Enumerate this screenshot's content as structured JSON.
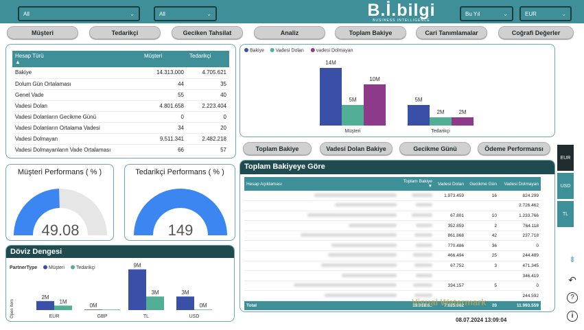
{
  "filters": [
    {
      "value": "All"
    },
    {
      "value": "All"
    },
    {
      "value": "Bu Yıl"
    },
    {
      "value": "EUR"
    }
  ],
  "logo": {
    "text": "B.İ.bilgi",
    "sub": "BUSINESS INTELLIGENCE"
  },
  "nav": [
    "Müşteri",
    "Tedarikçi",
    "Geciken Tahsilat",
    "Analiz",
    "Toplam Bakiye",
    "Cari Tanımlamalar",
    "Coğrafi Değerler"
  ],
  "summary_table": {
    "headers": [
      "Hesap Türü",
      "Müşteri",
      "Tedarikçi"
    ],
    "rows": [
      [
        "Bakiye",
        "14.313.000",
        "4.705.621"
      ],
      [
        "Dolum Gün Ortalaması",
        "44",
        "35"
      ],
      [
        "Genel Vade",
        "55",
        "40"
      ],
      [
        "Vadesi Dolan",
        "4.801.658",
        "2.223.404"
      ],
      [
        "Vadesi Dolanların Gecikme Günü",
        "0",
        "0"
      ],
      [
        "Vadesi Dolanların Ortalama Vadesi",
        "34",
        "20"
      ],
      [
        "Vadesi Dolmayan",
        "9.511.341",
        "2.482.218"
      ],
      [
        "Vadesi Dolmayanların Vade Ortalaması",
        "66",
        "57"
      ]
    ]
  },
  "gauges": [
    {
      "title": "Müşteri Performans ( % )",
      "value": "49.08",
      "fraction": 0.4908,
      "color": "#3b86f0"
    },
    {
      "title": "Tedarikçi Performans ( % )",
      "value": "149",
      "fraction": 1.0,
      "color": "#3b86f0"
    }
  ],
  "doviz": {
    "title": "Döviz Dengesi"
  },
  "balance": {
    "title": "Toplam Bakiyeye Göre"
  },
  "chart_data": [
    {
      "type": "bar",
      "legend": [
        "Bakiye",
        "Vadesi Dolan",
        "vadesi Dolmayan"
      ],
      "colors": [
        "#3a4fa6",
        "#53ae96",
        "#8e3a8b"
      ],
      "categories": [
        "Müşteri",
        "Tedarikçi"
      ],
      "series": [
        {
          "name": "Bakiye",
          "values": [
            14,
            5
          ],
          "labels": [
            "14M",
            "5M"
          ]
        },
        {
          "name": "Vadesi Dolan",
          "values": [
            5,
            2
          ],
          "labels": [
            "5M",
            "2M"
          ]
        },
        {
          "name": "vadesi Dolmayan",
          "values": [
            10,
            2
          ],
          "labels": [
            "10M",
            "2M"
          ]
        }
      ],
      "ylim": [
        0,
        16
      ]
    },
    {
      "type": "bar",
      "legend_title": "PartnerType",
      "legend": [
        "Müşteri",
        "Tedarikçi"
      ],
      "colors": [
        "#3a4fa6",
        "#53ae96"
      ],
      "ylabel": "Open Item",
      "categories": [
        "EUR",
        "GBP",
        "TL",
        "USD"
      ],
      "series": [
        {
          "name": "Müşteri",
          "values": [
            2,
            0,
            9,
            3
          ],
          "labels": [
            "2M",
            "0M",
            "9M",
            "3M"
          ]
        },
        {
          "name": "Tedarikçi",
          "values": [
            1,
            0,
            3,
            0
          ],
          "labels": [
            "1M",
            "",
            "3M",
            "0M"
          ]
        }
      ],
      "ylim": [
        0,
        10
      ]
    }
  ],
  "subnav": [
    "Toplam Bakiye",
    "Vadesi Dolan Bakiye",
    "Gecikme Günü",
    "Ödeme Performansı"
  ],
  "detail_table": {
    "headers": [
      "Hesap Açıklaması",
      "Toplam Bakiye",
      "Vadesi Dolan",
      "Gecikme Gün",
      "Vadesi Dolmayan"
    ],
    "rows": [
      [
        "",
        "",
        "1.973.459",
        "16",
        "824.299"
      ],
      [
        "",
        "",
        "",
        "",
        "2.726.462"
      ],
      [
        "",
        "",
        "67.801",
        "10",
        "1.233.766"
      ],
      [
        "",
        "",
        "352.859",
        "2",
        "764.118"
      ],
      [
        "",
        "",
        "861.868",
        "42",
        "237.718"
      ],
      [
        "",
        "",
        "770.486",
        "36",
        "0"
      ],
      [
        "",
        "",
        "466.494",
        "25",
        "244.489"
      ],
      [
        "",
        "",
        "67.752",
        "3",
        "471.345"
      ],
      [
        "",
        "",
        "",
        "",
        "346.419"
      ],
      [
        "",
        "",
        "334.157",
        "5",
        "0"
      ],
      [
        "",
        "",
        "",
        "",
        "244.592"
      ]
    ],
    "total": [
      "Total",
      "19.018.6..",
      "7.025.062",
      "20",
      "11.993.559"
    ]
  },
  "watermark": "Visual Watermark",
  "side_buttons": [
    {
      "label": "EUR",
      "color": "#1f2b2d"
    },
    {
      "label": "USD",
      "color": "#3e8f98"
    },
    {
      "label": "TL",
      "color": "#3e8f98"
    }
  ],
  "timestamp": "08.07.2024 13:09:04"
}
